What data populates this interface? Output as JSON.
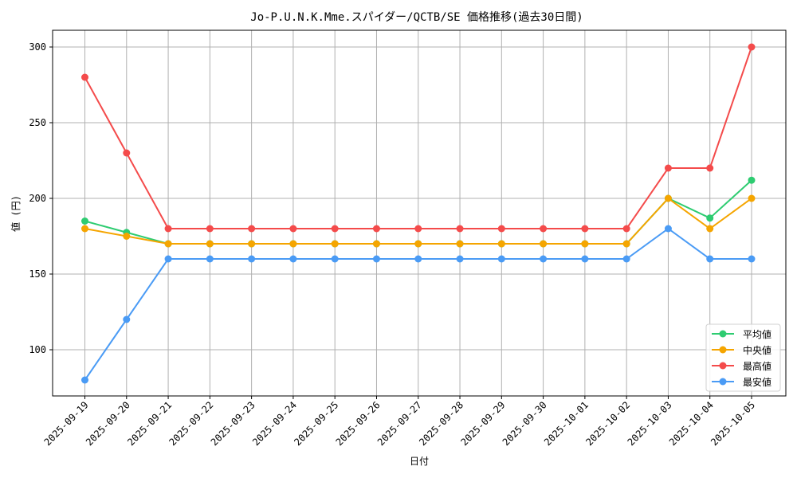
{
  "chart_data": {
    "type": "line",
    "title": "Jo-P.U.N.K.Mme.スパイダー/QCTB/SE 価格推移(過去30日間)",
    "xlabel": "日付",
    "ylabel": "値 (円)",
    "categories": [
      "2025-09-19",
      "2025-09-20",
      "2025-09-21",
      "2025-09-22",
      "2025-09-23",
      "2025-09-24",
      "2025-09-25",
      "2025-09-26",
      "2025-09-27",
      "2025-09-28",
      "2025-09-29",
      "2025-09-30",
      "2025-10-01",
      "2025-10-02",
      "2025-10-03",
      "2025-10-04",
      "2025-10-05"
    ],
    "series": [
      {
        "name": "平均値",
        "color": "#2ecc71",
        "values": [
          185,
          177.5,
          170,
          170,
          170,
          170,
          170,
          170,
          170,
          170,
          170,
          170,
          170,
          170,
          200,
          187,
          212
        ]
      },
      {
        "name": "中央値",
        "color": "#f5a500",
        "values": [
          180,
          175,
          170,
          170,
          170,
          170,
          170,
          170,
          170,
          170,
          170,
          170,
          170,
          170,
          200,
          180,
          200
        ]
      },
      {
        "name": "最高値",
        "color": "#f44b4b",
        "values": [
          280,
          230,
          180,
          180,
          180,
          180,
          180,
          180,
          180,
          180,
          180,
          180,
          180,
          180,
          220,
          220,
          300
        ]
      },
      {
        "name": "最安値",
        "color": "#4a9bf5",
        "values": [
          80,
          120,
          160,
          160,
          160,
          160,
          160,
          160,
          160,
          160,
          160,
          160,
          160,
          160,
          180,
          160,
          160
        ]
      }
    ],
    "yticks": [
      100,
      150,
      200,
      250,
      300
    ],
    "ylim": [
      69,
      311
    ],
    "grid": true,
    "legend_position": "lower right"
  }
}
